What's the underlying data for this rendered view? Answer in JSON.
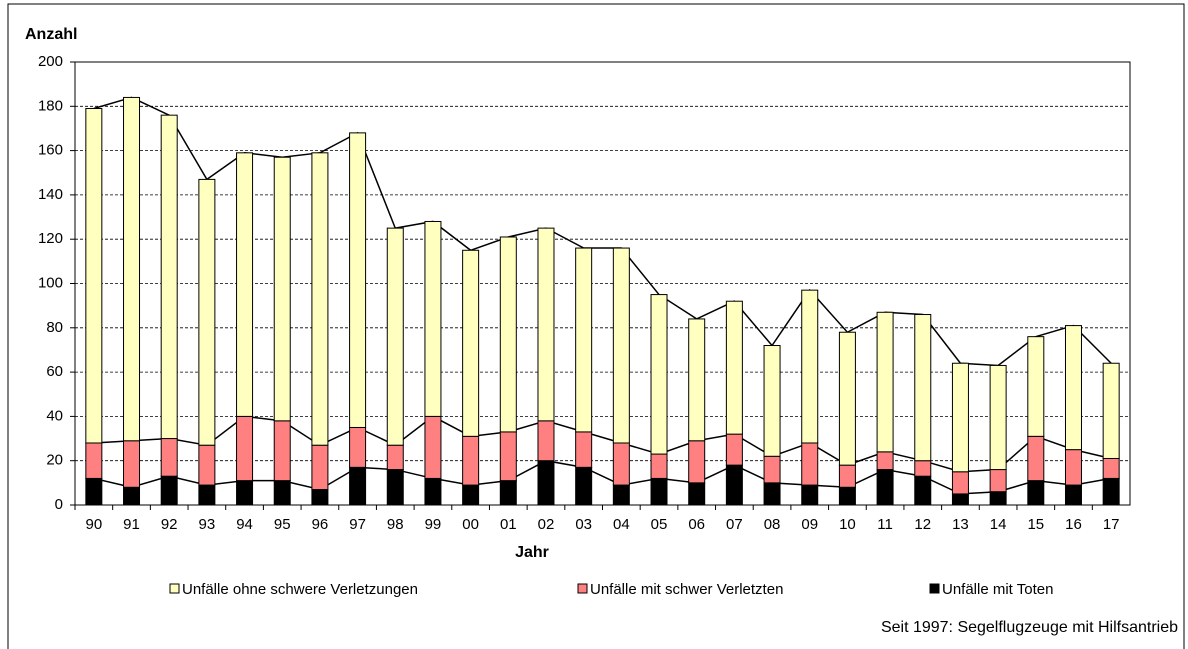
{
  "chart_data": {
    "type": "stacked-bar",
    "y_label": "Anzahl",
    "x_label": "Jahr",
    "note": "Seit 1997: Segelflugzeuge mit Hilfsantrieb",
    "categories": [
      "90",
      "91",
      "92",
      "93",
      "94",
      "95",
      "96",
      "97",
      "98",
      "99",
      "00",
      "01",
      "02",
      "03",
      "04",
      "05",
      "06",
      "07",
      "08",
      "09",
      "10",
      "11",
      "12",
      "13",
      "14",
      "15",
      "16",
      "17"
    ],
    "series": [
      {
        "name": "Unfälle mit Toten",
        "color": "#000000",
        "values": [
          12,
          8,
          13,
          9,
          11,
          11,
          7,
          17,
          16,
          12,
          9,
          11,
          20,
          17,
          9,
          12,
          10,
          18,
          10,
          9,
          8,
          16,
          13,
          5,
          6,
          11,
          9,
          12
        ]
      },
      {
        "name": "Unfälle mit schwer Verletzten",
        "color": "#ff8080",
        "values": [
          16,
          21,
          17,
          18,
          29,
          27,
          20,
          18,
          11,
          28,
          22,
          22,
          18,
          16,
          19,
          11,
          19,
          14,
          12,
          19,
          10,
          8,
          7,
          10,
          10,
          20,
          16,
          9
        ]
      },
      {
        "name": "Unfälle ohne schwere Verletzungen",
        "color": "#ffffc0",
        "values": [
          151,
          155,
          146,
          120,
          119,
          119,
          132,
          133,
          98,
          88,
          84,
          88,
          87,
          83,
          88,
          72,
          55,
          60,
          50,
          69,
          60,
          63,
          66,
          49,
          47,
          45,
          56,
          43
        ]
      }
    ],
    "legend_order": [
      2,
      1,
      0
    ],
    "ylim": [
      0,
      200
    ],
    "yticks": [
      0,
      20,
      40,
      60,
      80,
      100,
      120,
      140,
      160,
      180,
      200
    ],
    "grid": true
  }
}
